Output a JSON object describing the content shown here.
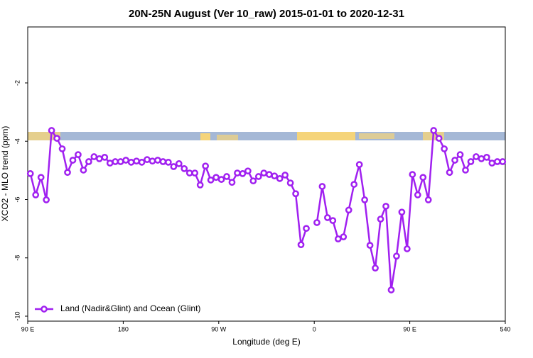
{
  "chart_data": {
    "type": "line",
    "title": "20N-25N August (Ver 10_raw)   2015-01-01 to 2020-12-31",
    "x_label": "Longitude (deg E)",
    "y_label": "XCO2 - MLO trend (ppm)",
    "xlim": [
      90,
      540
    ],
    "ylim": [
      -10.17,
      -0.08
    ],
    "xticks": [
      {
        "value": 90,
        "label": "90 E"
      },
      180,
      {
        "value": 270,
        "label": "90 W"
      },
      {
        "value": 360,
        "label": "0"
      },
      {
        "value": 450,
        "label": "90 E"
      },
      540
    ],
    "yticks": [
      -10,
      -8,
      -6,
      -4,
      -2
    ],
    "legend": "bottom-left",
    "x": [
      92.5,
      97.5,
      102.5,
      107.5,
      112.5,
      117.5,
      122.5,
      127.5,
      132.5,
      137.5,
      142.5,
      147.5,
      152.5,
      157.5,
      162.5,
      167.5,
      172.5,
      177.5,
      182.5,
      187.5,
      192.5,
      197.5,
      202.5,
      207.5,
      212.5,
      217.5,
      222.5,
      227.5,
      232.5,
      237.5,
      242.5,
      247.5,
      252.5,
      257.5,
      262.5,
      267.5,
      272.5,
      277.5,
      282.5,
      287.5,
      292.5,
      297.5,
      302.5,
      307.5,
      312.5,
      317.5,
      322.5,
      327.5,
      332.5,
      337.5,
      342.5,
      347.5,
      352.5,
      357.5,
      362.5,
      367.5,
      372.5,
      377.5,
      382.5,
      387.5,
      392.5,
      397.5,
      402.5,
      407.5,
      412.5,
      417.5,
      422.5,
      427.5,
      432.5,
      437.5,
      442.5,
      447.5,
      452.5,
      457.5,
      462.5,
      467.5,
      472.5,
      477.5,
      482.5,
      487.5,
      492.5,
      497.5,
      502.5,
      507.5,
      512.5,
      517.5,
      522.5,
      527.5,
      532.5,
      537.5
    ],
    "series": [
      {
        "name": "Land (Nadir&Glint) and Ocean (Glint)",
        "color": "#a020f0",
        "values": [
          -5.11,
          -5.84,
          -5.24,
          -6.01,
          -3.63,
          -3.9,
          -4.26,
          -5.07,
          -4.65,
          -4.46,
          -4.99,
          -4.7,
          -4.53,
          -4.6,
          -4.55,
          -4.75,
          -4.7,
          -4.7,
          -4.65,
          -4.72,
          -4.68,
          -4.72,
          -4.63,
          -4.68,
          -4.65,
          -4.7,
          -4.72,
          -4.87,
          -4.77,
          -4.94,
          -5.09,
          -5.09,
          -5.5,
          -4.85,
          -5.33,
          -5.24,
          -5.31,
          -5.21,
          -5.41,
          -5.09,
          -5.11,
          -5.02,
          -5.36,
          -5.21,
          -5.09,
          -5.14,
          -5.19,
          -5.28,
          -5.16,
          -5.43,
          -5.8,
          -7.55,
          -6.99,
          null,
          -6.79,
          -5.55,
          -6.62,
          -6.72,
          -7.35,
          -7.28,
          -6.36,
          -5.48,
          -4.8,
          -6.01,
          -7.57,
          -8.35,
          -6.67,
          -6.23,
          -9.1,
          -7.94,
          -6.43,
          -7.69,
          -5.14,
          -5.84,
          -5.24,
          -6.01,
          -3.63,
          -3.9,
          -4.26,
          -5.07,
          -4.65,
          -4.46,
          -4.99,
          -4.7,
          -4.53,
          -4.6,
          -4.55,
          -4.75,
          -4.7,
          -4.7
        ]
      }
    ]
  }
}
